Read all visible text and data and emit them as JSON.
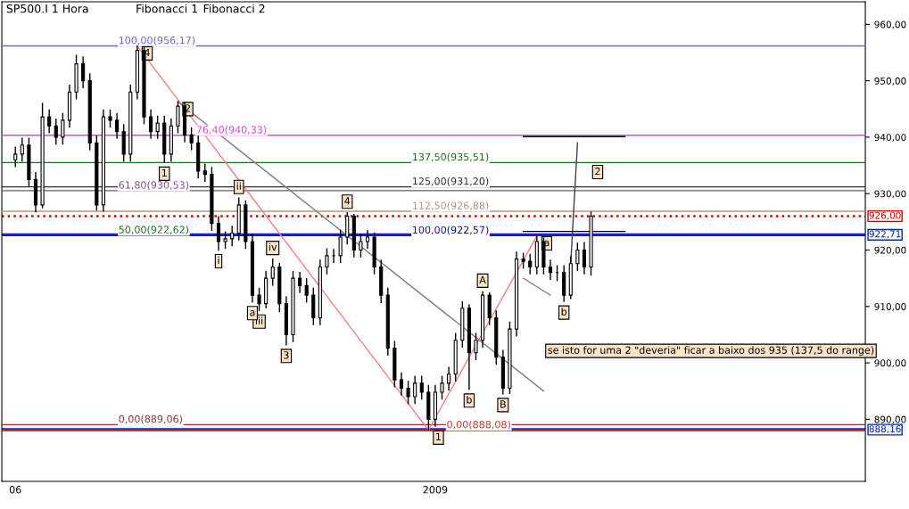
{
  "chart_data": {
    "type": "candlestick",
    "title": "SP500.I 1 Hora",
    "color": "#000000",
    "categories": [
      "06",
      null,
      null,
      null,
      null,
      null,
      null,
      null,
      null,
      null,
      null,
      null,
      null,
      null,
      null,
      null,
      null,
      null,
      null,
      null,
      null,
      null,
      null,
      null,
      null,
      null,
      null,
      null,
      null,
      null,
      null,
      null,
      null,
      null,
      null,
      null,
      null,
      null,
      null,
      null,
      null,
      null,
      null,
      null,
      null,
      null,
      null,
      null,
      null,
      null,
      null,
      null,
      null,
      null,
      null,
      null,
      null,
      null,
      null,
      null,
      null,
      null,
      "2009",
      null,
      null,
      null,
      null,
      null,
      null,
      null,
      null,
      null,
      null,
      null,
      null,
      null,
      null,
      null,
      null,
      null,
      null,
      null,
      null,
      null,
      null,
      null,
      null,
      null,
      null,
      null,
      null,
      null,
      null,
      null,
      null,
      null,
      null,
      null,
      null,
      null,
      null,
      null,
      null,
      null,
      null,
      null,
      null,
      null,
      null,
      null,
      null,
      null,
      null,
      null,
      null,
      null,
      null,
      null,
      null,
      null,
      null,
      null,
      null,
      null,
      null,
      null
    ],
    "ohlc": [
      [
        936,
        938.2,
        934.8,
        937
      ],
      [
        937,
        939.8,
        935.8,
        938.6
      ],
      [
        938.6,
        939.8,
        931.3,
        932.5
      ],
      [
        932.5,
        933.7,
        926.8,
        928
      ],
      [
        928,
        946,
        927.5,
        943.6
      ],
      [
        943.6,
        944.8,
        940.8,
        942
      ],
      [
        942,
        943.2,
        938.8,
        940
      ],
      [
        940,
        944.2,
        938.8,
        943
      ],
      [
        943,
        949.2,
        941.8,
        948
      ],
      [
        948,
        954.5,
        946.8,
        953
      ],
      [
        953,
        954.2,
        948.8,
        950
      ],
      [
        950,
        951.2,
        937.8,
        939
      ],
      [
        939,
        940.2,
        927.1,
        928
      ],
      [
        928,
        944.8,
        926.9,
        943.6
      ],
      [
        943.6,
        944.8,
        941.8,
        943
      ],
      [
        943,
        944.2,
        939.8,
        941
      ],
      [
        941,
        942.2,
        935.8,
        937
      ],
      [
        937,
        949.2,
        935.8,
        948
      ],
      [
        948,
        956.17,
        946.8,
        955.4
      ],
      [
        955.4,
        955.9,
        942.4,
        943.6
      ],
      [
        943.6,
        944.8,
        939.8,
        941
      ],
      [
        941,
        943.7,
        939.8,
        942.5
      ],
      [
        942.5,
        943.7,
        935.5,
        937
      ],
      [
        937,
        943.2,
        935.8,
        942
      ],
      [
        942,
        946.3,
        940.8,
        945.5
      ],
      [
        945.5,
        946.1,
        939.2,
        940.4
      ],
      [
        940.4,
        941.6,
        937.8,
        939
      ],
      [
        939,
        940.2,
        932.8,
        934
      ],
      [
        934,
        935.2,
        932.2,
        933.4
      ],
      [
        933.4,
        934.6,
        923.5,
        924.7
      ],
      [
        924.7,
        925.9,
        920,
        921.5
      ],
      [
        921.5,
        923.2,
        920.3,
        922
      ],
      [
        922,
        924.2,
        920.8,
        923
      ],
      [
        923,
        929.2,
        921.8,
        928
      ],
      [
        928,
        928.7,
        920.3,
        921.5
      ],
      [
        921.5,
        922.7,
        910.8,
        912
      ],
      [
        912,
        913.2,
        909.3,
        910.5
      ],
      [
        910.5,
        916.2,
        909.8,
        915
      ],
      [
        915,
        918.4,
        913.8,
        917
      ],
      [
        917,
        917.6,
        909.1,
        910.5
      ],
      [
        910.5,
        911.7,
        903.2,
        905
      ],
      [
        905,
        916.2,
        903.8,
        915
      ],
      [
        915,
        916.0,
        912.5,
        913.7
      ],
      [
        913.7,
        914.9,
        910.8,
        912
      ],
      [
        912,
        913.2,
        906.8,
        908
      ],
      [
        908,
        918.2,
        906.8,
        917
      ],
      [
        917,
        920.2,
        915.8,
        919
      ],
      [
        919,
        920.1,
        917.8,
        919
      ],
      [
        919,
        923.5,
        917.8,
        922.3
      ],
      [
        922.3,
        926.6,
        921.1,
        926
      ],
      [
        926,
        926.3,
        918.8,
        920
      ],
      [
        920,
        922.7,
        918.8,
        921.5
      ],
      [
        921.5,
        923.4,
        920.3,
        922.3
      ],
      [
        922.3,
        923.0,
        915.8,
        917
      ],
      [
        917,
        918.2,
        910.7,
        912
      ],
      [
        912,
        913.2,
        901.4,
        902.6
      ],
      [
        902.6,
        903.8,
        895.8,
        897
      ],
      [
        897,
        898.2,
        894.3,
        895.5
      ],
      [
        895.5,
        896.7,
        892.8,
        894
      ],
      [
        894,
        897.6,
        892.8,
        896.4
      ],
      [
        896.4,
        897.6,
        893.6,
        894.8
      ],
      [
        894.8,
        896,
        888.08,
        890
      ],
      [
        890,
        896,
        888.8,
        894.8
      ],
      [
        894.8,
        897.6,
        893.6,
        896.4
      ],
      [
        896.4,
        899.2,
        895.2,
        898
      ],
      [
        898,
        905.2,
        896.8,
        904
      ],
      [
        904,
        910.8,
        902.8,
        909.7
      ],
      [
        909.7,
        910.3,
        895.3,
        901.8
      ],
      [
        901.8,
        905.2,
        900.6,
        904
      ],
      [
        904,
        912.6,
        902.8,
        912
      ],
      [
        912,
        912.4,
        906.8,
        908
      ],
      [
        908,
        909.2,
        899.8,
        901
      ],
      [
        901,
        902.2,
        894.5,
        895.5
      ],
      [
        895.5,
        907.2,
        894.6,
        906
      ],
      [
        906,
        919.6,
        904.8,
        918.4
      ],
      [
        918.4,
        919.4,
        916.8,
        918
      ],
      [
        918,
        919.2,
        915.8,
        917
      ],
      [
        917,
        922.5,
        915.8,
        921.5
      ],
      [
        921.5,
        922.1,
        915.8,
        917
      ],
      [
        917,
        918.2,
        914.8,
        916
      ],
      [
        916,
        917.2,
        914.6,
        916
      ],
      [
        916,
        917.2,
        910.9,
        912
      ],
      [
        912,
        918.8,
        911.4,
        917.6
      ],
      [
        917.6,
        921.2,
        916.4,
        920
      ],
      [
        920,
        921.3,
        915.8,
        917
      ],
      [
        917,
        926.7,
        915.6,
        926
      ],
      null,
      null,
      null,
      null,
      null,
      null,
      null,
      null,
      null,
      null,
      null,
      null,
      null,
      null,
      null,
      null,
      null,
      null,
      null,
      null,
      null,
      null,
      null,
      null,
      null,
      null,
      null,
      null,
      null,
      null,
      null,
      null,
      null,
      null,
      null,
      null,
      null,
      null,
      null,
      null
    ],
    "series": [
      {
        "type": "line",
        "color": "#f08080",
        "values": [
          null,
          null,
          null,
          null,
          null,
          null,
          null,
          null,
          null,
          null,
          null,
          null,
          null,
          null,
          null,
          null,
          null,
          null,
          956.17,
          null,
          null,
          null,
          null,
          null,
          null,
          null,
          null,
          null,
          null,
          null,
          null,
          null,
          null,
          null,
          null,
          null,
          null,
          null,
          null,
          null,
          null,
          null,
          null,
          null,
          null,
          null,
          null,
          null,
          null,
          null,
          null,
          null,
          null,
          null,
          null,
          null,
          null,
          null,
          null,
          null,
          null,
          888.08,
          null,
          null,
          null,
          null,
          null,
          null,
          null,
          null,
          null,
          null,
          null,
          null,
          null,
          null,
          null,
          null,
          null,
          null,
          null,
          null,
          null,
          null,
          null,
          null,
          null,
          null,
          null,
          null,
          null,
          null,
          null,
          null,
          null,
          null,
          null,
          null,
          null,
          null,
          null,
          null,
          null,
          null,
          null,
          null,
          null,
          null,
          null,
          null,
          null,
          null,
          null,
          null,
          null,
          null,
          null,
          null,
          null,
          null,
          null,
          null,
          null,
          null,
          null,
          null
        ]
      },
      {
        "type": "line",
        "color": "#f08080",
        "values": [
          null,
          null,
          null,
          null,
          null,
          null,
          null,
          null,
          null,
          null,
          null,
          null,
          null,
          null,
          null,
          null,
          null,
          null,
          null,
          null,
          null,
          null,
          null,
          null,
          null,
          null,
          null,
          null,
          null,
          null,
          null,
          null,
          null,
          null,
          null,
          null,
          null,
          null,
          null,
          null,
          null,
          null,
          null,
          null,
          null,
          null,
          null,
          null,
          null,
          null,
          null,
          null,
          null,
          null,
          null,
          null,
          null,
          null,
          null,
          null,
          null,
          888.08,
          null,
          null,
          null,
          null,
          null,
          null,
          null,
          null,
          null,
          null,
          null,
          null,
          null,
          null,
          null,
          922.5,
          null,
          null,
          null,
          null,
          null,
          null,
          null,
          null,
          null,
          null,
          null,
          null,
          null,
          null,
          null,
          null,
          null,
          null,
          null,
          null,
          null,
          null,
          null,
          null,
          null,
          null,
          null,
          null,
          null,
          null,
          null,
          null,
          null,
          null,
          null,
          null,
          null,
          null,
          null,
          null,
          null,
          null,
          null,
          null,
          null,
          null,
          null,
          null
        ]
      },
      {
        "type": "line",
        "color": "#808080",
        "values": [
          null,
          null,
          null,
          null,
          null,
          null,
          null,
          null,
          null,
          null,
          null,
          null,
          null,
          null,
          null,
          null,
          null,
          null,
          null,
          null,
          null,
          null,
          null,
          null,
          946.3,
          null,
          null,
          null,
          null,
          null,
          null,
          null,
          null,
          null,
          null,
          null,
          null,
          null,
          null,
          null,
          null,
          null,
          null,
          null,
          null,
          null,
          null,
          null,
          null,
          null,
          null,
          null,
          null,
          null,
          null,
          null,
          null,
          null,
          null,
          null,
          null,
          null,
          null,
          null,
          null,
          null,
          null,
          null,
          null,
          null,
          null,
          null,
          null,
          null,
          null,
          null,
          null,
          null,
          895,
          null,
          null,
          null,
          null,
          null,
          null,
          null,
          null,
          null,
          null,
          null,
          null,
          null,
          null,
          null,
          null,
          null,
          null,
          null,
          null,
          null,
          null,
          null,
          null,
          null,
          null,
          null,
          null,
          null,
          null,
          null,
          null,
          null,
          null,
          null,
          null,
          null,
          null,
          null,
          null,
          null,
          null,
          null,
          null,
          null,
          null,
          null
        ]
      },
      {
        "type": "line",
        "color": "#808080",
        "values": [
          null,
          null,
          null,
          null,
          null,
          null,
          null,
          null,
          null,
          null,
          null,
          null,
          null,
          null,
          null,
          null,
          null,
          null,
          null,
          null,
          null,
          null,
          null,
          null,
          null,
          null,
          null,
          null,
          null,
          null,
          null,
          null,
          null,
          null,
          null,
          null,
          null,
          null,
          null,
          null,
          null,
          null,
          null,
          null,
          null,
          null,
          null,
          null,
          null,
          null,
          null,
          null,
          null,
          null,
          null,
          null,
          null,
          null,
          null,
          null,
          null,
          null,
          null,
          null,
          null,
          null,
          null,
          null,
          null,
          null,
          null,
          null,
          null,
          null,
          null,
          915,
          null,
          null,
          null,
          912,
          null,
          null,
          null,
          null,
          null,
          null,
          null,
          null,
          null,
          null,
          null,
          null,
          null,
          null,
          null,
          null,
          null,
          null,
          null,
          null,
          null,
          null,
          null,
          null,
          null,
          null,
          null,
          null,
          null,
          null,
          null,
          null,
          null,
          null,
          null,
          null,
          null,
          null,
          null,
          null,
          null,
          null,
          null,
          null,
          null,
          null
        ]
      },
      {
        "type": "line",
        "color": "#404040",
        "values": [
          null,
          null,
          null,
          null,
          null,
          null,
          null,
          null,
          null,
          null,
          null,
          null,
          null,
          null,
          null,
          null,
          null,
          null,
          null,
          null,
          null,
          null,
          null,
          null,
          null,
          null,
          null,
          null,
          null,
          null,
          null,
          null,
          null,
          null,
          null,
          null,
          null,
          null,
          null,
          null,
          null,
          null,
          null,
          null,
          null,
          null,
          null,
          null,
          null,
          null,
          null,
          null,
          null,
          null,
          null,
          null,
          null,
          null,
          null,
          null,
          null,
          null,
          null,
          null,
          null,
          null,
          null,
          null,
          null,
          null,
          null,
          null,
          null,
          null,
          null,
          null,
          null,
          null,
          null,
          null,
          null,
          null,
          917.6,
          939,
          null,
          null,
          null,
          null,
          null,
          null,
          null,
          null,
          null,
          null,
          null,
          null,
          null,
          null,
          null,
          null,
          null,
          null,
          null,
          null,
          null,
          null,
          null,
          null,
          null,
          null,
          null,
          null,
          null,
          null,
          null,
          null,
          null,
          null,
          null,
          null,
          null,
          null,
          null,
          null,
          null,
          null
        ]
      },
      {
        "type": "line",
        "color": "#000000",
        "values": [
          null,
          null,
          null,
          null,
          null,
          null,
          null,
          null,
          null,
          null,
          null,
          null,
          null,
          null,
          null,
          null,
          null,
          null,
          null,
          null,
          null,
          null,
          null,
          null,
          null,
          null,
          null,
          null,
          null,
          null,
          null,
          null,
          null,
          null,
          null,
          null,
          null,
          null,
          null,
          null,
          null,
          null,
          null,
          null,
          null,
          null,
          null,
          null,
          null,
          null,
          null,
          null,
          null,
          null,
          null,
          null,
          null,
          null,
          null,
          null,
          null,
          null,
          null,
          null,
          null,
          null,
          null,
          null,
          null,
          null,
          null,
          null,
          null,
          null,
          null,
          940.1,
          940.1,
          940.1,
          940.1,
          940.1,
          940.1,
          940.1,
          940.1,
          940.1,
          940.1,
          940.1,
          940.1,
          940.1,
          940.1,
          940.1,
          940.1,
          null,
          null,
          null,
          null,
          null,
          null,
          null,
          null,
          null,
          null,
          null,
          null,
          null,
          null,
          null,
          null,
          null,
          null,
          null,
          null,
          null,
          null,
          null,
          null,
          null,
          null,
          null,
          null,
          null,
          null,
          null,
          null,
          null,
          null,
          null
        ]
      },
      {
        "type": "line",
        "color": "#000000",
        "values": [
          null,
          null,
          null,
          null,
          null,
          null,
          null,
          null,
          null,
          null,
          null,
          null,
          null,
          null,
          null,
          null,
          null,
          null,
          null,
          null,
          null,
          null,
          null,
          null,
          null,
          null,
          null,
          null,
          null,
          null,
          null,
          null,
          null,
          null,
          null,
          null,
          null,
          null,
          null,
          null,
          null,
          null,
          null,
          null,
          null,
          null,
          null,
          null,
          null,
          null,
          null,
          null,
          null,
          null,
          null,
          null,
          null,
          null,
          null,
          null,
          null,
          null,
          null,
          null,
          null,
          null,
          null,
          null,
          null,
          null,
          null,
          null,
          null,
          null,
          null,
          923.3,
          923.3,
          923.3,
          923.3,
          923.3,
          923.3,
          923.3,
          923.3,
          923.3,
          923.3,
          923.3,
          923.3,
          923.3,
          923.3,
          923.3,
          923.3,
          null,
          null,
          null,
          null,
          null,
          null,
          null,
          null,
          null,
          null,
          null,
          null,
          null,
          null,
          null,
          null,
          null,
          null,
          null,
          null,
          null,
          null,
          null,
          null,
          null,
          null,
          null,
          null,
          null,
          null,
          null,
          null,
          null,
          null,
          null
        ]
      }
    ],
    "ylim": [
      879,
      964
    ],
    "yticks": [
      {
        "value": 890,
        "label": "890,00"
      },
      {
        "value": 900,
        "label": "900,00"
      },
      {
        "value": 910,
        "label": "910,00"
      },
      {
        "value": 920,
        "label": "920,00"
      },
      {
        "value": 930,
        "label": "930,00"
      },
      {
        "value": 940,
        "label": "940,00"
      },
      {
        "value": 950,
        "label": "950,00"
      },
      {
        "value": 960,
        "label": "960,00"
      }
    ],
    "ref_lines": [
      {
        "axis": "y",
        "value": 956.17,
        "label": "100,00(956,17)",
        "color": "#6666dd",
        "line_style": "solid"
      },
      {
        "axis": "y",
        "value": 940.33,
        "label": "76,40(940,33)",
        "color": "#dd44dd",
        "line_style": "solid"
      },
      {
        "axis": "y",
        "value": 930.53,
        "label": "61,80(930,53)",
        "color": "#805080",
        "line_style": "solid"
      },
      {
        "axis": "y",
        "value": 922.62,
        "label": "50,00(922,62)",
        "color": "#207020",
        "line_style": "solid"
      },
      {
        "axis": "y",
        "value": 889.06,
        "label": "0,00(889,06)",
        "color": "#a03030",
        "line_style": "solid"
      },
      {
        "axis": "y",
        "value": 935.51,
        "label": "137,50(935,51)",
        "color": "#207020",
        "line_style": "solid"
      },
      {
        "axis": "y",
        "value": 931.2,
        "label": "125,00(931,20)",
        "color": "#303030",
        "line_style": "solid"
      },
      {
        "axis": "y",
        "value": 926.88,
        "label": "112,50(926,88)",
        "color": "#b09888",
        "line_style": "solid"
      },
      {
        "axis": "y",
        "value": 922.57,
        "label": "100,00(922,57)",
        "color": "#1a1a90",
        "line_style": "solid"
      },
      {
        "axis": "y",
        "value": 888.08,
        "label": "0,00(888,08)",
        "color": "#d03030",
        "line_style": "solid"
      },
      {
        "axis": "y",
        "value": 926.0,
        "label": "926,00",
        "color": "#cc0000",
        "line_style": "dotted"
      },
      {
        "axis": "y",
        "value": 922.71,
        "label": "922,71",
        "color": "#0022cc",
        "line_style": "solid"
      },
      {
        "axis": "y",
        "value": 888.16,
        "label": "888,16",
        "color": "#0022cc",
        "line_style": "solid"
      }
    ],
    "annotations": [
      "Fibonacci 1",
      "Fibonacci 2",
      {
        "text": "4",
        "y": 956.17
      },
      {
        "text": "2",
        "y": 946.3
      },
      {
        "text": "1",
        "y": 935.5
      },
      {
        "text": "i",
        "y": 920
      },
      {
        "text": "ii",
        "y": 929.2
      },
      {
        "text": "iii",
        "y": 909.3
      },
      {
        "text": "iv",
        "y": 918.4
      },
      {
        "text": "3",
        "y": 903.2
      },
      {
        "text": "4",
        "y": 926.6
      },
      {
        "text": "1",
        "y": 888.08
      },
      {
        "text": "a",
        "y": 910.8
      },
      {
        "text": "b",
        "y": 895.3
      },
      {
        "text": "A",
        "y": 912.6
      },
      {
        "text": "B",
        "y": 894.5
      },
      {
        "text": "a",
        "y": 922.5
      },
      {
        "text": "b",
        "y": 910.9
      },
      "2",
      "se isto for uma 2 \"deveria\" ficar a baixo dos 935 (137,5 do range)"
    ],
    "grid": false
  }
}
